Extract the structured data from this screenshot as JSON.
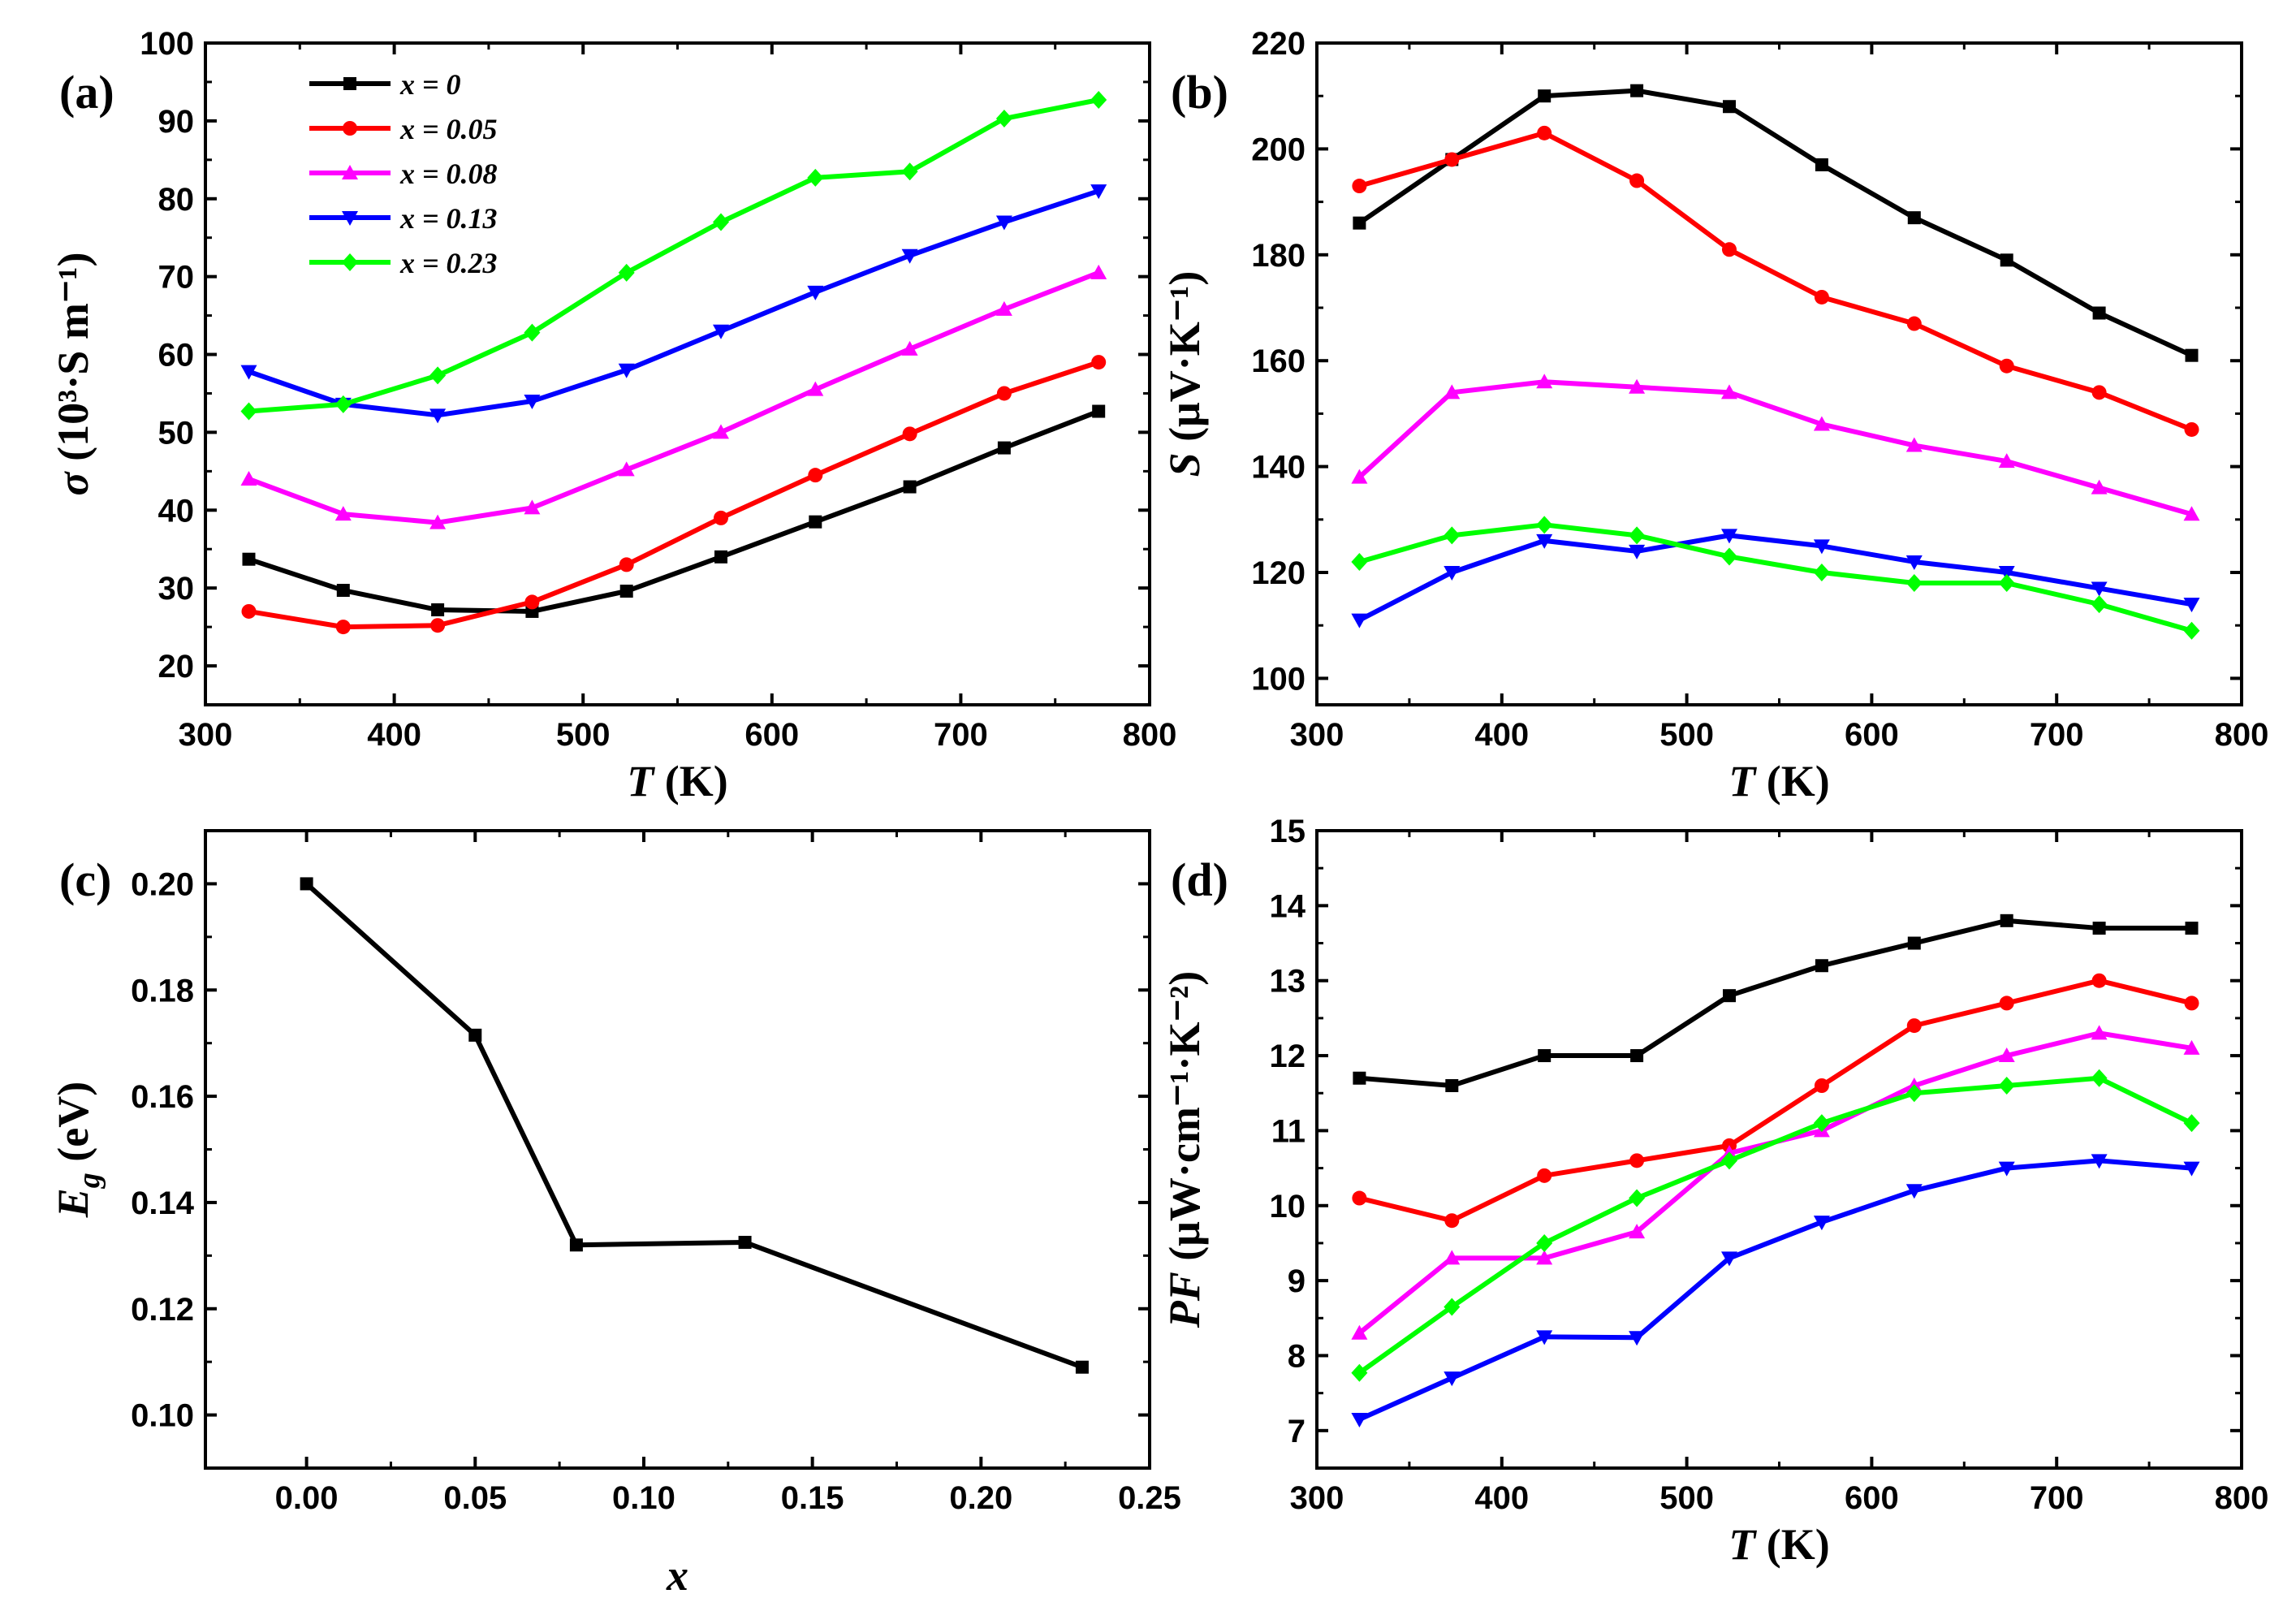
{
  "chart_data": [
    {
      "id": "a",
      "tag": "(a)",
      "type": "line",
      "xlabel_italic": "T",
      "xlabel_rest": " (K)",
      "ylabel_italic": "σ",
      "ylabel_rest": " (10³·S m⁻¹)",
      "xlim": [
        300,
        800
      ],
      "ylim": [
        15,
        100
      ],
      "xticks": [
        300,
        400,
        500,
        600,
        700,
        800
      ],
      "yticks": [
        20,
        30,
        40,
        50,
        60,
        70,
        80,
        90,
        100
      ],
      "x": [
        323,
        373,
        423,
        473,
        523,
        573,
        623,
        673,
        723,
        773
      ],
      "legend_position": "top-left",
      "series": [
        {
          "name": "x = 0",
          "color": "#000000",
          "marker": "square",
          "values": [
            33.7,
            29.7,
            27.2,
            27.0,
            29.6,
            34.0,
            38.5,
            43.0,
            48.0,
            52.7
          ]
        },
        {
          "name": "x = 0.05",
          "color": "#ff0000",
          "marker": "circle",
          "values": [
            27.0,
            25.0,
            25.2,
            28.2,
            33.0,
            39.0,
            44.5,
            49.8,
            55.0,
            59.0
          ]
        },
        {
          "name": "x = 0.08",
          "color": "#ff00ff",
          "marker": "triangle-up",
          "values": [
            44.0,
            39.5,
            38.4,
            40.3,
            45.2,
            50.0,
            55.5,
            60.7,
            65.8,
            70.5
          ]
        },
        {
          "name": "x = 0.13",
          "color": "#0000ff",
          "marker": "triangle-down",
          "values": [
            57.8,
            53.6,
            52.2,
            54.0,
            58.0,
            63.0,
            68.0,
            72.7,
            77.0,
            81.0
          ]
        },
        {
          "name": "x = 0.23",
          "color": "#00ff00",
          "marker": "diamond",
          "values": [
            52.7,
            53.6,
            57.3,
            62.8,
            70.5,
            77.0,
            82.7,
            83.5,
            90.3,
            92.7
          ]
        }
      ]
    },
    {
      "id": "b",
      "tag": "(b)",
      "type": "line",
      "xlabel_italic": "T",
      "xlabel_rest": " (K)",
      "ylabel_italic": "S",
      "ylabel_rest": " (μV·K⁻¹)",
      "xlim": [
        300,
        800
      ],
      "ylim": [
        95,
        220
      ],
      "xticks": [
        300,
        400,
        500,
        600,
        700,
        800
      ],
      "yticks": [
        100,
        120,
        140,
        160,
        180,
        200,
        220
      ],
      "x": [
        323,
        373,
        423,
        473,
        523,
        573,
        623,
        673,
        723,
        773
      ],
      "series": [
        {
          "name": "x = 0",
          "color": "#000000",
          "marker": "square",
          "values": [
            186,
            198,
            210,
            211,
            208,
            197,
            187,
            179,
            169,
            161
          ]
        },
        {
          "name": "x = 0.05",
          "color": "#ff0000",
          "marker": "circle",
          "values": [
            193,
            198,
            203,
            194,
            181,
            172,
            167,
            159,
            154,
            147
          ]
        },
        {
          "name": "x = 0.08",
          "color": "#ff00ff",
          "marker": "triangle-up",
          "values": [
            138,
            154,
            156,
            155,
            154,
            148,
            144,
            141,
            136,
            131
          ]
        },
        {
          "name": "x = 0.13",
          "color": "#0000ff",
          "marker": "triangle-down",
          "values": [
            111,
            120,
            126,
            124,
            127,
            125,
            122,
            120,
            117,
            114
          ]
        },
        {
          "name": "x = 0.23",
          "color": "#00ff00",
          "marker": "diamond",
          "values": [
            122,
            127,
            129,
            127,
            123,
            120,
            118,
            118,
            114,
            109
          ]
        }
      ]
    },
    {
      "id": "c",
      "tag": "(c)",
      "type": "line",
      "xlabel_italic": "x",
      "xlabel_rest": "",
      "ylabel_italic": "E",
      "ylabel_sub": "g",
      "ylabel_rest": " (eV)",
      "xlim": [
        -0.03,
        0.25
      ],
      "ylim": [
        0.09,
        0.21
      ],
      "xticks": [
        0.0,
        0.05,
        0.1,
        0.15,
        0.2,
        0.25
      ],
      "xtick_labels": [
        "0.00",
        "0.05",
        "0.10",
        "0.15",
        "0.20",
        "0.25"
      ],
      "yticks": [
        0.1,
        0.12,
        0.14,
        0.16,
        0.18,
        0.2
      ],
      "ytick_labels": [
        "0.10",
        "0.12",
        "0.14",
        "0.16",
        "0.18",
        "0.20"
      ],
      "x": [
        0,
        0.05,
        0.08,
        0.13,
        0.23
      ],
      "series": [
        {
          "name": "Eg",
          "color": "#000000",
          "marker": "square",
          "values": [
            0.2,
            0.1715,
            0.132,
            0.1325,
            0.109
          ]
        }
      ]
    },
    {
      "id": "d",
      "tag": "(d)",
      "type": "line",
      "xlabel_italic": "T",
      "xlabel_rest": " (K)",
      "ylabel_italic": "PF",
      "ylabel_rest": " (μW·cm⁻¹·K⁻²)",
      "xlim": [
        300,
        800
      ],
      "ylim": [
        6.5,
        15
      ],
      "xticks": [
        300,
        400,
        500,
        600,
        700,
        800
      ],
      "yticks": [
        7,
        8,
        9,
        10,
        11,
        12,
        13,
        14,
        15
      ],
      "x": [
        323,
        373,
        423,
        473,
        523,
        573,
        623,
        673,
        723,
        773
      ],
      "series": [
        {
          "name": "x = 0",
          "color": "#000000",
          "marker": "square",
          "values": [
            11.7,
            11.6,
            12.0,
            12.0,
            12.8,
            13.2,
            13.5,
            13.8,
            13.7,
            13.7
          ]
        },
        {
          "name": "x = 0.05",
          "color": "#ff0000",
          "marker": "circle",
          "values": [
            10.1,
            9.8,
            10.4,
            10.6,
            10.8,
            11.6,
            12.4,
            12.7,
            13.0,
            12.7
          ]
        },
        {
          "name": "x = 0.08",
          "color": "#ff00ff",
          "marker": "triangle-up",
          "values": [
            8.3,
            9.3,
            9.3,
            9.65,
            10.7,
            11.0,
            11.6,
            12.0,
            12.3,
            12.1
          ]
        },
        {
          "name": "x = 0.13",
          "color": "#0000ff",
          "marker": "triangle-down",
          "values": [
            7.15,
            7.7,
            8.25,
            8.24,
            9.3,
            9.78,
            10.2,
            10.5,
            10.6,
            10.5
          ]
        },
        {
          "name": "x = 0.23",
          "color": "#00ff00",
          "marker": "diamond",
          "values": [
            7.77,
            8.65,
            9.5,
            10.1,
            10.6,
            11.1,
            11.5,
            11.6,
            11.7,
            11.1
          ]
        }
      ]
    }
  ]
}
